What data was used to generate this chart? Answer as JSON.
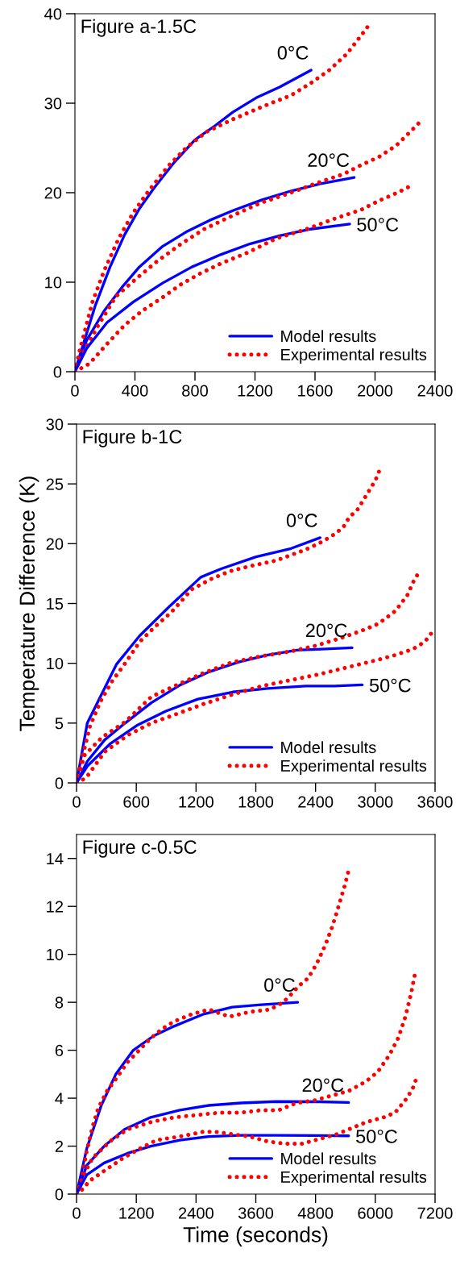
{
  "chart_data": [
    {
      "type": "line",
      "title": "Figure a-1.5C",
      "xlim": [
        0,
        2400
      ],
      "xticks": [
        0,
        400,
        800,
        1200,
        1600,
        2000,
        2400
      ],
      "ylim": [
        0,
        40
      ],
      "yticks": [
        0,
        10,
        20,
        30,
        40
      ],
      "grid": false,
      "legend": "bottom right",
      "marker": "none",
      "annotations": [
        "0°C",
        "20°C",
        "50°C"
      ],
      "series": [
        {
          "name": "Model results",
          "color": "#0000ff",
          "line_style": "solid",
          "x": [
            0,
            58,
            136,
            234,
            331,
            429,
            526,
            662,
            799,
            935,
            1052,
            1208,
            1364,
            1574
          ],
          "values": [
            0,
            3.2,
            7.4,
            11.7,
            15.3,
            18.2,
            20.5,
            23.4,
            25.9,
            27.5,
            29.0,
            30.6,
            31.8,
            33.7
          ]
        },
        {
          "name": "Experimental results",
          "color": "#ff0000",
          "line_style": "dotted",
          "x": [
            0,
            29,
            117,
            195,
            292,
            390,
            487,
            623,
            740,
            877,
            1052,
            1247,
            1442,
            1568,
            1695,
            1812,
            1909,
            1958
          ],
          "values": [
            0,
            2.2,
            7.8,
            11.3,
            14.9,
            17.8,
            20.1,
            23.0,
            25.0,
            26.8,
            28.2,
            29.6,
            30.9,
            32.2,
            33.7,
            35.5,
            37.6,
            38.7
          ]
        },
        {
          "color": "#0000ff",
          "line_style": "solid",
          "x": [
            0,
            78,
            195,
            312,
            429,
            584,
            740,
            896,
            1052,
            1247,
            1442,
            1637,
            1861
          ],
          "values": [
            0,
            3.5,
            6.8,
            9.4,
            11.7,
            14.0,
            15.6,
            16.9,
            18.0,
            19.2,
            20.2,
            21.0,
            21.7
          ]
        },
        {
          "color": "#ff0000",
          "line_style": "dotted",
          "x": [
            0,
            39,
            156,
            273,
            409,
            545,
            701,
            857,
            1033,
            1228,
            1422,
            1617,
            1793,
            1909,
            2026,
            2143,
            2240,
            2299
          ],
          "values": [
            0,
            1.6,
            5.2,
            8.4,
            10.4,
            12.3,
            14.2,
            15.9,
            17.3,
            18.8,
            19.9,
            21.1,
            22.1,
            23.1,
            24.0,
            25.3,
            26.9,
            27.9
          ]
        },
        {
          "color": "#0000ff",
          "line_style": "solid",
          "x": [
            0,
            78,
            214,
            390,
            584,
            779,
            974,
            1169,
            1364,
            1558,
            1831
          ],
          "values": [
            0,
            2.6,
            5.5,
            7.8,
            9.9,
            11.7,
            13.1,
            14.3,
            15.2,
            15.9,
            16.5
          ]
        },
        {
          "color": "#ff0000",
          "line_style": "dotted",
          "x": [
            0,
            97,
            214,
            331,
            448,
            584,
            701,
            838,
            974,
            1150,
            1344,
            1539,
            1714,
            1909,
            2026,
            2162,
            2231
          ],
          "values": [
            0,
            0.9,
            3.1,
            5.2,
            6.8,
            8.3,
            9.7,
            11.0,
            12.1,
            13.3,
            14.9,
            15.9,
            17.0,
            18.1,
            19.1,
            20.1,
            20.7
          ]
        }
      ]
    },
    {
      "type": "line",
      "title": "Figure b-1C",
      "ylabel": "Temperature Difference (K)",
      "xlim": [
        0,
        3600
      ],
      "xticks": [
        0,
        600,
        1200,
        1800,
        2400,
        3000,
        3600
      ],
      "ylim": [
        0,
        30
      ],
      "yticks": [
        0,
        5,
        10,
        15,
        20,
        25,
        30
      ],
      "grid": false,
      "legend": "bottom right",
      "marker": "none",
      "annotations": [
        "0°C",
        "20°C",
        "50°C"
      ],
      "series": [
        {
          "name": "Model results",
          "color": "#0000ff",
          "line_style": "solid",
          "x": [
            0,
            108,
            400,
            634,
            926,
            1248,
            1452,
            1803,
            2154,
            2446
          ],
          "values": [
            0,
            5.0,
            9.9,
            12.3,
            14.7,
            17.2,
            17.9,
            18.9,
            19.6,
            20.5
          ]
        },
        {
          "name": "Experimental results",
          "color": "#ff0000",
          "line_style": "dotted",
          "x": [
            0,
            35,
            137,
            240,
            357,
            488,
            634,
            780,
            955,
            1160,
            1365,
            1540,
            1730,
            2007,
            2299,
            2475,
            2592,
            2680,
            2738,
            2826,
            2884,
            2943,
            3001,
            3045
          ],
          "values": [
            0,
            1.4,
            4.8,
            6.8,
            8.5,
            10.0,
            11.8,
            13.0,
            14.3,
            16.2,
            17.1,
            17.7,
            18.1,
            18.6,
            19.5,
            20.2,
            20.8,
            21.4,
            22.2,
            22.9,
            23.7,
            24.5,
            25.3,
            26.2
          ]
        },
        {
          "color": "#0000ff",
          "line_style": "solid",
          "x": [
            0,
            108,
            283,
            488,
            751,
            1043,
            1335,
            1628,
            1920,
            2212,
            2504,
            2767
          ],
          "values": [
            0,
            1.8,
            3.6,
            5.0,
            6.7,
            8.2,
            9.3,
            10.1,
            10.7,
            11.1,
            11.2,
            11.3
          ]
        },
        {
          "color": "#ff0000",
          "line_style": "dotted",
          "x": [
            0,
            79,
            254,
            488,
            751,
            985,
            1277,
            1569,
            1861,
            2154,
            2416,
            2650,
            2855,
            3030,
            3205,
            3322,
            3381,
            3430
          ],
          "values": [
            0,
            2.3,
            3.8,
            5.1,
            7.2,
            8.1,
            9.2,
            10.1,
            10.6,
            11.0,
            11.5,
            12.1,
            12.7,
            13.3,
            14.4,
            15.7,
            16.8,
            17.5
          ]
        },
        {
          "color": "#0000ff",
          "line_style": "solid",
          "x": [
            0,
            108,
            342,
            605,
            897,
            1218,
            1569,
            1920,
            2300,
            2592,
            2869
          ],
          "values": [
            0,
            1.4,
            3.3,
            4.8,
            6.0,
            7.0,
            7.6,
            7.9,
            8.1,
            8.1,
            8.2
          ]
        },
        {
          "color": "#ff0000",
          "line_style": "dotted",
          "x": [
            0,
            94,
            283,
            517,
            751,
            985,
            1277,
            1569,
            1861,
            2154,
            2446,
            2738,
            3030,
            3205,
            3381,
            3498,
            3571
          ],
          "values": [
            0,
            0.4,
            2.6,
            4.0,
            5.0,
            5.7,
            6.6,
            7.4,
            8.1,
            8.6,
            9.1,
            9.7,
            10.3,
            10.7,
            11.2,
            11.8,
            12.6
          ]
        }
      ]
    },
    {
      "type": "line",
      "title": "Figure c-0.5C",
      "xlabel": "Time (seconds)",
      "xlim": [
        0,
        7200
      ],
      "xticks": [
        0,
        1200,
        2400,
        3600,
        4800,
        6000,
        7200
      ],
      "ylim": [
        0,
        15
      ],
      "yticks": [
        0,
        2,
        4,
        6,
        8,
        10,
        12,
        14
      ],
      "grid": false,
      "legend": "bottom right",
      "marker": "none",
      "annotations": [
        "0°C",
        "20°C",
        "50°C"
      ],
      "series": [
        {
          "name": "Model results",
          "color": "#0000ff",
          "line_style": "solid",
          "x": [
            0,
            205,
            497,
            789,
            1140,
            1549,
            1958,
            2543,
            3127,
            3712,
            4442
          ],
          "values": [
            0,
            1.9,
            3.7,
            5.0,
            6.0,
            6.6,
            7.0,
            7.5,
            7.8,
            7.9,
            8.0
          ]
        },
        {
          "name": "Experimental results",
          "color": "#ff0000",
          "line_style": "dotted",
          "x": [
            0,
            88,
            205,
            321,
            438,
            614,
            789,
            1023,
            1257,
            1490,
            1724,
            1958,
            2309,
            2659,
            3069,
            3478,
            3887,
            4150,
            4296,
            4471,
            4647,
            4822,
            4998,
            5144,
            5261,
            5377,
            5465
          ],
          "values": [
            0,
            0.4,
            1.8,
            2.8,
            3.6,
            4.3,
            4.8,
            5.5,
            6.0,
            6.5,
            6.9,
            7.2,
            7.5,
            7.7,
            7.4,
            7.6,
            7.7,
            8.0,
            8.3,
            8.7,
            9.0,
            9.6,
            10.4,
            11.2,
            12.0,
            12.8,
            13.5
          ]
        },
        {
          "color": "#0000ff",
          "line_style": "solid",
          "x": [
            0,
            205,
            555,
            964,
            1490,
            2075,
            2659,
            3302,
            4004,
            4881,
            5465
          ],
          "values": [
            0,
            1.2,
            2.0,
            2.7,
            3.2,
            3.5,
            3.7,
            3.8,
            3.86,
            3.85,
            3.82
          ]
        },
        {
          "color": "#ff0000",
          "line_style": "dotted",
          "x": [
            0,
            117,
            321,
            672,
            1023,
            1490,
            1958,
            2426,
            2893,
            3302,
            3712,
            4062,
            4413,
            4764,
            5114,
            5465,
            5816,
            6050,
            6283,
            6459,
            6605,
            6722,
            6798
          ],
          "values": [
            0,
            0.7,
            1.5,
            2.2,
            2.7,
            3.0,
            3.2,
            3.3,
            3.4,
            3.4,
            3.5,
            3.5,
            3.8,
            3.9,
            4.1,
            4.3,
            4.7,
            5.1,
            5.8,
            6.5,
            7.4,
            8.4,
            9.2
          ]
        },
        {
          "color": "#0000ff",
          "line_style": "solid",
          "x": [
            0,
            205,
            555,
            1023,
            1490,
            2075,
            2659,
            3302,
            4004,
            4764,
            5465
          ],
          "values": [
            0,
            0.8,
            1.3,
            1.7,
            2.0,
            2.25,
            2.4,
            2.45,
            2.45,
            2.44,
            2.43
          ]
        },
        {
          "color": "#ff0000",
          "line_style": "dotted",
          "x": [
            0,
            58,
            263,
            555,
            906,
            1257,
            1607,
            2075,
            2543,
            2776,
            3127,
            3478,
            3829,
            4180,
            4530,
            4881,
            5231,
            5465,
            5816,
            6166,
            6400,
            6634,
            6751,
            6821
          ],
          "values": [
            0,
            0.06,
            0.55,
            0.97,
            1.46,
            1.88,
            2.25,
            2.4,
            2.6,
            2.6,
            2.5,
            2.4,
            2.2,
            2.1,
            2.1,
            2.3,
            2.5,
            2.7,
            3.0,
            3.2,
            3.4,
            4.0,
            4.4,
            4.8
          ]
        }
      ]
    }
  ]
}
